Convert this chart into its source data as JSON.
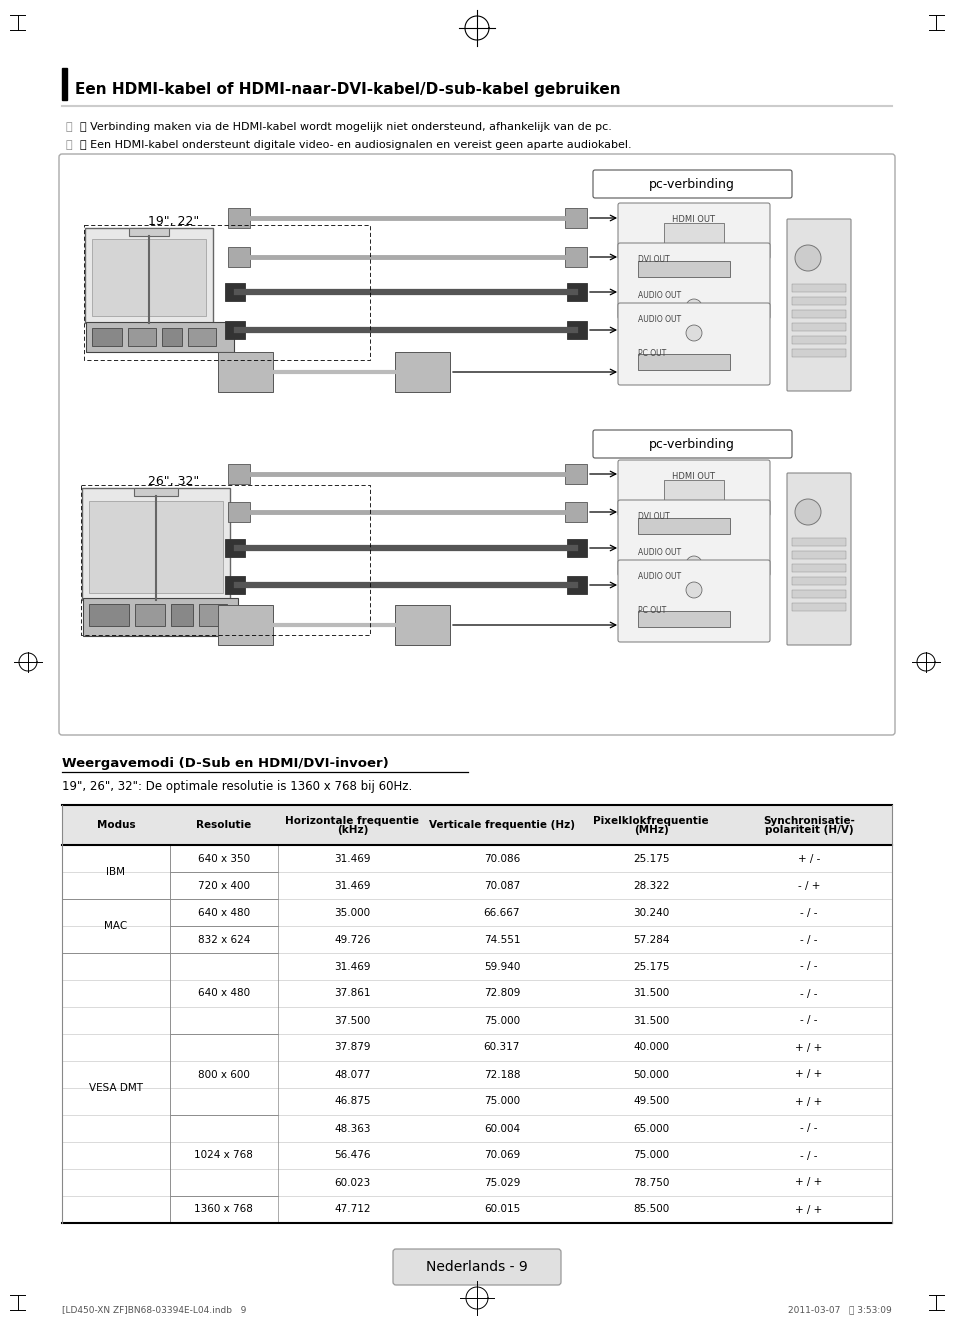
{
  "page_bg": "#ffffff",
  "title": "Een HDMI-kabel of HDMI-naar-DVI-kabel/D-sub-kabel gebruiken",
  "note1": "ⓘ Verbinding maken via de HDMI-kabel wordt mogelijk niet ondersteund, afhankelijk van de pc.",
  "note2": "ⓘ Een HDMI-kabel ondersteunt digitale video- en audiosignalen en vereist geen aparte audiokabel.",
  "section_title": "Weergavemodi (D-Sub en HDMI/DVI-invoer)",
  "section_note": "19\", 26\", 32\": De optimale resolutie is 1360 x 768 bij 60Hz.",
  "table_headers": [
    "Modus",
    "Resolutie",
    "Horizontale frequentie\n(kHz)",
    "Verticale frequentie (Hz)",
    "Pixelklokfrequentie\n(MHz)",
    "Synchronisatie-\npolariteit (H/V)"
  ],
  "table_data": [
    [
      "IBM",
      "640 x 350",
      "31.469",
      "70.086",
      "25.175",
      "+ / -"
    ],
    [
      "IBM",
      "720 x 400",
      "31.469",
      "70.087",
      "28.322",
      "- / +"
    ],
    [
      "MAC",
      "640 x 480",
      "35.000",
      "66.667",
      "30.240",
      "- / -"
    ],
    [
      "MAC",
      "832 x 624",
      "49.726",
      "74.551",
      "57.284",
      "- / -"
    ],
    [
      "VESA DMT",
      "640 x 480",
      "31.469",
      "59.940",
      "25.175",
      "- / -"
    ],
    [
      "VESA DMT",
      "640 x 480",
      "37.861",
      "72.809",
      "31.500",
      "- / -"
    ],
    [
      "VESA DMT",
      "640 x 480",
      "37.500",
      "75.000",
      "31.500",
      "- / -"
    ],
    [
      "VESA DMT",
      "800 x 600",
      "37.879",
      "60.317",
      "40.000",
      "+ / +"
    ],
    [
      "VESA DMT",
      "800 x 600",
      "48.077",
      "72.188",
      "50.000",
      "+ / +"
    ],
    [
      "VESA DMT",
      "800 x 600",
      "46.875",
      "75.000",
      "49.500",
      "+ / +"
    ],
    [
      "VESA DMT",
      "1024 x 768",
      "48.363",
      "60.004",
      "65.000",
      "- / -"
    ],
    [
      "VESA DMT",
      "1024 x 768",
      "56.476",
      "70.069",
      "75.000",
      "- / -"
    ],
    [
      "VESA DMT",
      "1024 x 768",
      "60.023",
      "75.029",
      "78.750",
      "+ / +"
    ],
    [
      "VESA DMT",
      "1360 x 768",
      "47.712",
      "60.015",
      "85.500",
      "+ / +"
    ]
  ],
  "footer_text": "Nederlands - 9",
  "bottom_left": "[LD450-XN ZF]BN68-03394E-L04.indb   9",
  "bottom_right": "2011-03-07    3:53:09",
  "diagram_label1": "pc-verbinding",
  "diagram_label_19": "19\", 22\"",
  "diagram_label_26": "26\", 32\""
}
